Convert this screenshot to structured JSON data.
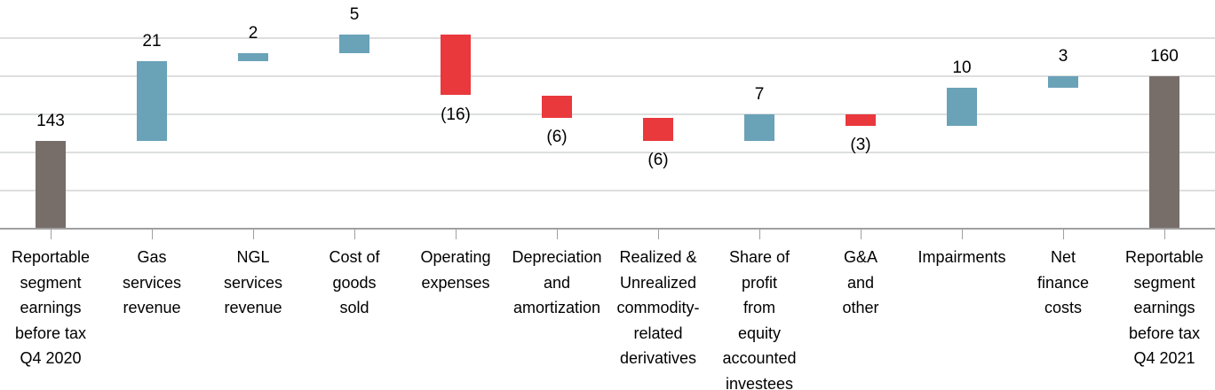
{
  "chart_data": {
    "type": "bar",
    "subtype": "waterfall",
    "title": "",
    "xlabel": "",
    "ylabel": "",
    "categories": [
      "Reportable segment earnings before tax Q4 2020",
      "Gas services revenue",
      "NGL services revenue",
      "Cost of goods sold",
      "Operating expenses",
      "Depreciation and amortization",
      "Realized & Unrealized commodity-related derivatives",
      "Share of profit from equity accounted investees",
      "G&A and other",
      "Impairments",
      "Net finance costs",
      "Reportable segment earnings before tax Q4 2021"
    ],
    "values": [
      143,
      21,
      2,
      5,
      -16,
      -6,
      -6,
      7,
      -3,
      10,
      3,
      160
    ],
    "bars": [
      {
        "display": "143",
        "value": 143,
        "role": "total",
        "span": [
          120,
          143
        ],
        "lines": [
          "Reportable",
          "segment",
          "earnings",
          "before tax",
          "Q4 2020"
        ]
      },
      {
        "display": "21",
        "value": 21,
        "role": "increase",
        "span": [
          143,
          164
        ],
        "lines": [
          "Gas",
          "services",
          "revenue"
        ]
      },
      {
        "display": "2",
        "value": 2,
        "role": "increase",
        "span": [
          164,
          166
        ],
        "lines": [
          "NGL",
          "services",
          "revenue"
        ]
      },
      {
        "display": "5",
        "value": 5,
        "role": "increase",
        "span": [
          166,
          171
        ],
        "lines": [
          "Cost of",
          "goods",
          "sold"
        ]
      },
      {
        "display": "(16)",
        "value": -16,
        "role": "decrease",
        "span": [
          155,
          171
        ],
        "lines": [
          "Operating",
          "expenses"
        ]
      },
      {
        "display": "(6)",
        "value": -6,
        "role": "decrease",
        "span": [
          149,
          155
        ],
        "lines": [
          "Depreciation",
          "and",
          "amortization"
        ]
      },
      {
        "display": "(6)",
        "value": -6,
        "role": "decrease",
        "span": [
          143,
          149
        ],
        "lines": [
          "Realized &",
          "Unrealized",
          "commodity-",
          "related",
          "derivatives"
        ]
      },
      {
        "display": "7",
        "value": 7,
        "role": "increase",
        "span": [
          143,
          150
        ],
        "lines": [
          "Share of",
          "profit",
          "from",
          "equity",
          "accounted",
          "investees"
        ]
      },
      {
        "display": "(3)",
        "value": -3,
        "role": "decrease",
        "span": [
          147,
          150
        ],
        "lines": [
          "G&A",
          "and",
          "other"
        ]
      },
      {
        "display": "10",
        "value": 10,
        "role": "increase",
        "span": [
          147,
          157
        ],
        "lines": [
          "Impairments"
        ]
      },
      {
        "display": "3",
        "value": 3,
        "role": "increase",
        "span": [
          157,
          160
        ],
        "lines": [
          "Net",
          "finance",
          "costs"
        ]
      },
      {
        "display": "160",
        "value": 160,
        "role": "total",
        "span": [
          120,
          160
        ],
        "lines": [
          "Reportable",
          "segment",
          "earnings",
          "before tax",
          "Q4 2021"
        ]
      }
    ],
    "axis": {
      "ylim": [
        120,
        180
      ],
      "gridlines": [
        130,
        140,
        150,
        160,
        170
      ],
      "gridline_step": 10,
      "y_tick_labels_visible": false,
      "grid": true
    },
    "legend": {
      "visible": false
    },
    "colors": {
      "increase": "#6aa2b8",
      "decrease": "#e9393d",
      "total": "#776e69",
      "gridline": "#dddedf",
      "axis_line": "#a0a0a0",
      "text": "#000000"
    }
  }
}
